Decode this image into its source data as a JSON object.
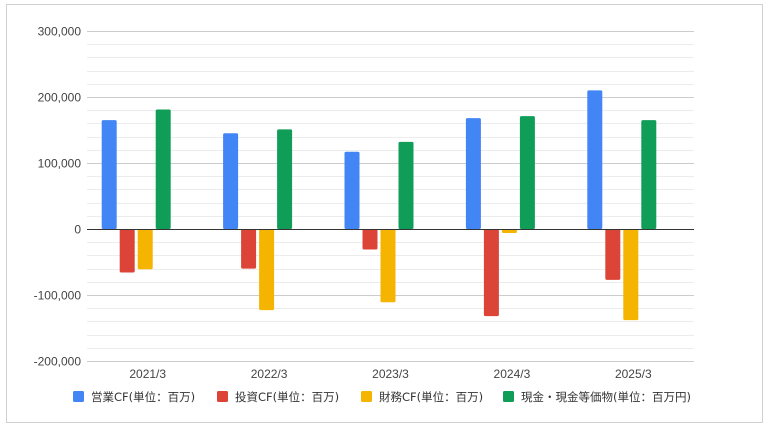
{
  "chart_data": {
    "type": "bar",
    "categories": [
      "2021/3",
      "2022/3",
      "2023/3",
      "2024/3",
      "2025/3"
    ],
    "series": [
      {
        "name": "営業CF(単位：百万)",
        "color": "#4285F4",
        "values": [
          165000,
          145000,
          117000,
          168000,
          210000
        ]
      },
      {
        "name": "投資CF(単位：百万)",
        "color": "#DB4437",
        "values": [
          -66000,
          -60000,
          -31000,
          -132000,
          -77000
        ]
      },
      {
        "name": "財務CF(単位：百万)",
        "color": "#F4B400",
        "values": [
          -61000,
          -123000,
          -111000,
          -6000,
          -138000
        ]
      },
      {
        "name": "現金・現金等価物(単位：百万円)",
        "color": "#0F9D58",
        "values": [
          181000,
          151000,
          132000,
          171000,
          165000
        ]
      }
    ],
    "yticks": [
      -200000,
      -100000,
      0,
      100000,
      200000,
      300000
    ],
    "ytick_labels": [
      "-200,000",
      "-100,000",
      "0",
      "100,000",
      "200,000",
      "300,000"
    ],
    "ylim": [
      -200000,
      300000
    ],
    "grid": true,
    "minor_grid": true,
    "legend_position": "bottom"
  }
}
